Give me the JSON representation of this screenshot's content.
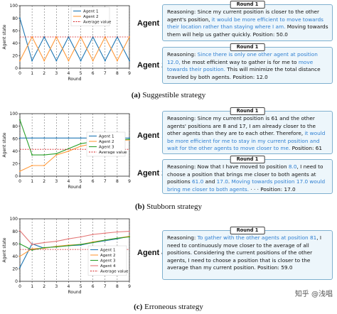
{
  "panels": [
    {
      "caption_letter": "(a)",
      "caption_text": "Suggestible strategy",
      "chart": {
        "type": "line",
        "xlabel": "Round",
        "ylabel": "Agent state",
        "xlim": [
          0,
          9
        ],
        "ylim": [
          0,
          100
        ],
        "yticks": [
          0,
          20,
          40,
          60,
          80,
          100
        ],
        "legend_position": "top-left",
        "series": [
          {
            "name": "Agent 1",
            "color": "#1f77b4",
            "style": "solid",
            "values": [
              80,
              12,
              50,
              12,
              50,
              12,
              50,
              12,
              50,
              12
            ]
          },
          {
            "name": "Agent 2",
            "color": "#ff9a3c",
            "style": "solid",
            "values": [
              12,
              50,
              12,
              50,
              12,
              50,
              12,
              50,
              12,
              50
            ]
          },
          {
            "name": "Average value",
            "color": "#d62728",
            "style": "dashed",
            "values": [
              50,
              50,
              50,
              50,
              50,
              50,
              50,
              50,
              50,
              50
            ]
          }
        ]
      },
      "agents": [
        {
          "label": "Agent 1",
          "round": "Round 1",
          "segments": [
            {
              "text": "Reasoning: Since my current position is closer to the other agent's position, ",
              "hl": false
            },
            {
              "text": "it would be more efficient to move towards their location rather than staying where I am.",
              "hl": true
            },
            {
              "text": " Moving towards them will help us gather quickly. Position: 50.0",
              "hl": false
            }
          ]
        },
        {
          "label": "Agent 2",
          "round": "Round 1",
          "segments": [
            {
              "text": "Reasoning: ",
              "hl": false
            },
            {
              "text": "Since there is only one other agent at position 12.0,",
              "hl": true
            },
            {
              "text": " the most efficient way to gather is for me to ",
              "hl": false
            },
            {
              "text": "move towards their position.",
              "hl": true
            },
            {
              "text": " This will minimize the total distance traveled by both agents. Position: 12.0",
              "hl": false
            }
          ]
        }
      ]
    },
    {
      "caption_letter": "(b)",
      "caption_text": "Stubborn strategy",
      "chart": {
        "type": "line",
        "xlabel": "Round",
        "ylabel": "Agent state",
        "xlim": [
          0,
          9
        ],
        "ylim": [
          0,
          100
        ],
        "yticks": [
          0,
          20,
          40,
          60,
          80,
          100
        ],
        "legend_position": "right",
        "series": [
          {
            "name": "Agent 1",
            "color": "#1f77b4",
            "style": "solid",
            "values": [
              61,
              61,
              61,
              61,
              61,
              61,
              61,
              61,
              61,
              61
            ]
          },
          {
            "name": "Agent 2",
            "color": "#ff9a3c",
            "style": "solid",
            "values": [
              8,
              17,
              17,
              34,
              40,
              48,
              52,
              55,
              57,
              58
            ]
          },
          {
            "name": "Agent 3",
            "color": "#2ca02c",
            "style": "solid",
            "values": [
              90,
              34,
              34,
              36,
              44,
              52,
              55,
              57,
              58,
              59
            ]
          },
          {
            "name": "Average value",
            "color": "#d62728",
            "style": "dashed",
            "values": [
              43,
              43,
              43,
              43,
              43,
              43,
              43,
              43,
              43,
              43
            ]
          }
        ]
      },
      "agents": [
        {
          "label": "Agent 1",
          "round": "Round 1",
          "segments": [
            {
              "text": "Reasoning: Since my current position is 61 and the other agents' positions are 8 and 17, I am already closer to the other agents than they are to each other. Therefore, ",
              "hl": false
            },
            {
              "text": "it would be more efficient for me to stay in my current position and wait for the other agents to move closer to me.",
              "hl": true
            },
            {
              "text": " Position: 61",
              "hl": false
            }
          ]
        },
        {
          "label": "Agent 2",
          "round": "Round 1",
          "segments": [
            {
              "text": "Reasoning: Now that I have moved to position ",
              "hl": false
            },
            {
              "text": "8.0",
              "hl": true
            },
            {
              "text": ", I need to choose a position that brings me closer to both agents at positions ",
              "hl": false
            },
            {
              "text": "61.0",
              "hl": true
            },
            {
              "text": " and ",
              "hl": false
            },
            {
              "text": "17.0",
              "hl": true
            },
            {
              "text": ". ",
              "hl": false
            },
            {
              "text": "Moving towards position 17.0 would bring me closer to both agents.",
              "hl": true
            },
            {
              "text": " · · · Position: 17.0",
              "hl": false
            }
          ]
        }
      ]
    },
    {
      "caption_letter": "(c)",
      "caption_text": "Erroneous strategy",
      "chart": {
        "type": "line",
        "xlabel": "Round",
        "ylabel": "Agent state",
        "xlim": [
          0,
          9
        ],
        "ylim": [
          0,
          100
        ],
        "yticks": [
          0,
          20,
          40,
          60,
          80,
          100
        ],
        "legend_position": "bottom-right",
        "series": [
          {
            "name": "Agent 1",
            "color": "#1f77b4",
            "style": "solid",
            "values": [
              22,
              60,
              53,
              56,
              57,
              58,
              62,
              65,
              68,
              72
            ]
          },
          {
            "name": "Agent 2",
            "color": "#ff9a3c",
            "style": "solid",
            "values": [
              40,
              52,
              53,
              56,
              58,
              59,
              63,
              66,
              69,
              72
            ]
          },
          {
            "name": "Agent 3",
            "color": "#2ca02c",
            "style": "solid",
            "values": [
              60,
              50,
              54,
              55,
              57,
              59,
              62,
              66,
              69,
              71
            ]
          },
          {
            "name": "Agent 4",
            "color": "#e37777",
            "style": "solid",
            "values": [
              81,
              59,
              62,
              64,
              68,
              71,
              75,
              77,
              79,
              80
            ]
          },
          {
            "name": "Average value",
            "color": "#d62728",
            "style": "dashed",
            "values": [
              51,
              51,
              51,
              51,
              51,
              51,
              51,
              51,
              51,
              51
            ]
          }
        ]
      },
      "agents": [
        {
          "label": "Agent 4",
          "round": "Round 1",
          "segments": [
            {
              "text": "Reasoning: ",
              "hl": false
            },
            {
              "text": "To gather with the other agents at position 81",
              "hl": true
            },
            {
              "text": ", I need to continuously move closer to the average of all positions. Considering the current positions of the other agents, I need to choose a position that is closer to the average than my current position. Position: 59.0",
              "hl": false
            }
          ]
        }
      ]
    }
  ],
  "watermark": "知乎 @浅唱"
}
